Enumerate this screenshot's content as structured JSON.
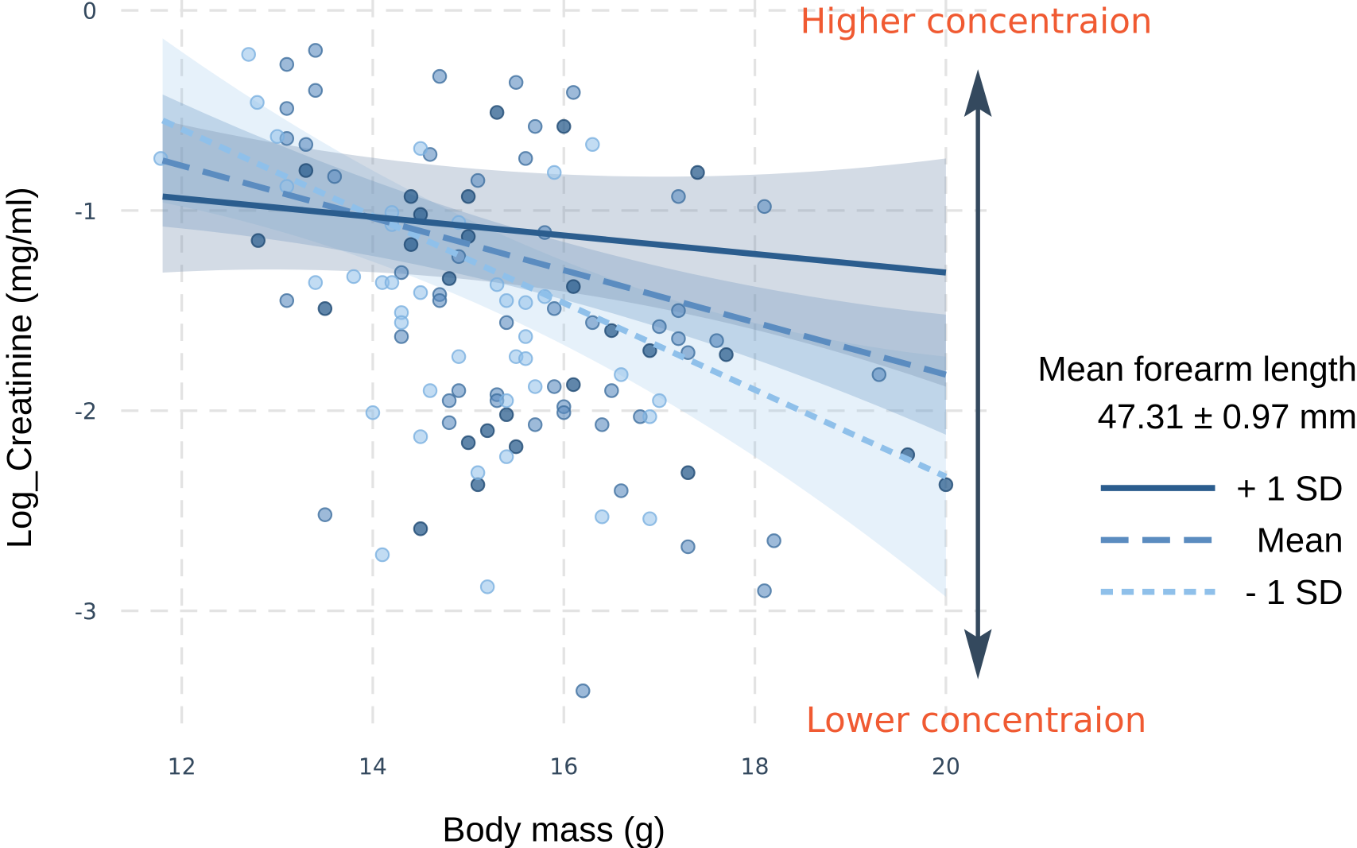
{
  "chart_data": {
    "type": "scatter",
    "xlabel": "Body mass (g)",
    "ylabel": "Log_Creatinine (mg/ml)",
    "xlim": [
      11.8,
      20.4
    ],
    "ylim": [
      -3.55,
      0.05
    ],
    "x_ticks": [
      "12",
      "14",
      "16",
      "18",
      "20"
    ],
    "x_tick_values": [
      12,
      14,
      16,
      18,
      20
    ],
    "y_ticks": [
      "0",
      "-1",
      "-2",
      "-3"
    ],
    "y_tick_values": [
      0,
      -1,
      -2,
      -3
    ],
    "grid": true,
    "legend_position": "right",
    "annotations": {
      "top": "Higher concentraion",
      "bottom": "Lower concentraion",
      "moderator_title": "Mean forearm length",
      "moderator_value": "47.31 ± 0.97 mm"
    },
    "colors": {
      "plus_sd": "#2b5d8e",
      "mean": "#5b8cc0",
      "minus_sd": "#8fc0ea",
      "arrow": "#34495e",
      "annotation": "#f05a32"
    },
    "series": [
      {
        "name": "+ 1 SD",
        "style": "solid",
        "color": "#2b5d8e",
        "line": [
          [
            11.8,
            -0.93
          ],
          [
            20,
            -1.31
          ]
        ],
        "ribbon": [
          [
            11.8,
            -1.31,
            -0.55
          ],
          [
            15.3,
            -1.36,
            -0.8
          ],
          [
            20,
            -1.88,
            -0.74
          ]
        ]
      },
      {
        "name": "Mean",
        "style": "dashed",
        "color": "#5b8cc0",
        "line": [
          [
            11.8,
            -0.75
          ],
          [
            20,
            -1.82
          ]
        ],
        "ribbon": [
          [
            11.8,
            -1.08,
            -0.42
          ],
          [
            15.3,
            -1.36,
            -1.06
          ],
          [
            20,
            -2.12,
            -1.52
          ]
        ]
      },
      {
        "name": "- 1 SD",
        "style": "dotted",
        "color": "#8fc0ea",
        "line": [
          [
            11.8,
            -0.55
          ],
          [
            20,
            -2.33
          ]
        ],
        "ribbon": [
          [
            11.8,
            -0.96,
            -0.14
          ],
          [
            15.3,
            -1.51,
            -1.11
          ],
          [
            20,
            -2.93,
            -1.73
          ]
        ]
      }
    ],
    "points": {
      "dark": [
        [
          13.3,
          -0.8
        ],
        [
          12.8,
          -1.15
        ],
        [
          13.5,
          -1.49
        ],
        [
          14.4,
          -0.93
        ],
        [
          14.5,
          -1.02
        ],
        [
          14.4,
          -1.17
        ],
        [
          14.8,
          -1.34
        ],
        [
          15.0,
          -0.93
        ],
        [
          15.0,
          -1.13
        ],
        [
          15.3,
          -0.51
        ],
        [
          16.0,
          -0.58
        ],
        [
          16.1,
          -1.38
        ],
        [
          15.4,
          -2.02
        ],
        [
          16.1,
          -1.87
        ],
        [
          15.0,
          -2.16
        ],
        [
          15.2,
          -2.1
        ],
        [
          15.5,
          -2.18
        ],
        [
          15.1,
          -2.37
        ],
        [
          16.5,
          -1.6
        ],
        [
          16.9,
          -1.7
        ],
        [
          17.7,
          -1.72
        ],
        [
          17.4,
          -0.81
        ],
        [
          19.6,
          -2.22
        ],
        [
          20.0,
          -2.37
        ],
        [
          14.5,
          -2.59
        ],
        [
          17.3,
          -2.31
        ]
      ],
      "mid": [
        [
          13.1,
          -0.27
        ],
        [
          13.4,
          -0.2
        ],
        [
          13.4,
          -0.4
        ],
        [
          13.1,
          -0.49
        ],
        [
          13.1,
          -0.64
        ],
        [
          13.3,
          -0.67
        ],
        [
          13.6,
          -0.83
        ],
        [
          13.1,
          -1.45
        ],
        [
          14.3,
          -1.31
        ],
        [
          14.6,
          -0.72
        ],
        [
          14.7,
          -0.33
        ],
        [
          14.7,
          -1.42
        ],
        [
          14.7,
          -1.45
        ],
        [
          14.3,
          -1.63
        ],
        [
          15.1,
          -0.85
        ],
        [
          14.9,
          -1.23
        ],
        [
          15.5,
          -0.36
        ],
        [
          15.7,
          -0.58
        ],
        [
          16.1,
          -0.41
        ],
        [
          15.6,
          -0.74
        ],
        [
          15.8,
          -1.11
        ],
        [
          15.9,
          -1.49
        ],
        [
          15.4,
          -1.56
        ],
        [
          14.8,
          -1.95
        ],
        [
          14.9,
          -1.9
        ],
        [
          14.8,
          -2.06
        ],
        [
          15.3,
          -1.92
        ],
        [
          15.3,
          -1.95
        ],
        [
          15.9,
          -1.88
        ],
        [
          16.0,
          -1.98
        ],
        [
          16.0,
          -2.01
        ],
        [
          15.7,
          -2.07
        ],
        [
          16.3,
          -1.56
        ],
        [
          16.5,
          -1.9
        ],
        [
          16.4,
          -2.07
        ],
        [
          16.8,
          -2.03
        ],
        [
          17.0,
          -1.58
        ],
        [
          17.2,
          -1.5
        ],
        [
          17.2,
          -1.64
        ],
        [
          17.3,
          -1.71
        ],
        [
          17.6,
          -1.65
        ],
        [
          17.2,
          -0.93
        ],
        [
          18.1,
          -0.98
        ],
        [
          19.3,
          -1.82
        ],
        [
          13.5,
          -2.52
        ],
        [
          16.6,
          -2.4
        ],
        [
          17.3,
          -2.68
        ],
        [
          18.2,
          -2.65
        ],
        [
          18.1,
          -2.9
        ],
        [
          16.2,
          -3.4
        ]
      ],
      "light": [
        [
          12.7,
          -0.22
        ],
        [
          12.79,
          -0.46
        ],
        [
          13.0,
          -0.63
        ],
        [
          13.1,
          -0.88
        ],
        [
          11.78,
          -0.74
        ],
        [
          13.4,
          -1.36
        ],
        [
          13.8,
          -1.33
        ],
        [
          14.1,
          -1.36
        ],
        [
          14.2,
          -1.36
        ],
        [
          14.2,
          -1.01
        ],
        [
          14.2,
          -1.07
        ],
        [
          14.5,
          -0.69
        ],
        [
          14.5,
          -1.41
        ],
        [
          14.3,
          -1.51
        ],
        [
          14.3,
          -1.56
        ],
        [
          14.9,
          -1.06
        ],
        [
          15.9,
          -0.81
        ],
        [
          16.3,
          -0.67
        ],
        [
          15.3,
          -1.37
        ],
        [
          15.4,
          -1.45
        ],
        [
          15.6,
          -1.46
        ],
        [
          15.8,
          -1.43
        ],
        [
          15.6,
          -1.63
        ],
        [
          14.9,
          -1.73
        ],
        [
          15.5,
          -1.73
        ],
        [
          15.6,
          -1.74
        ],
        [
          14.6,
          -1.9
        ],
        [
          15.4,
          -1.95
        ],
        [
          15.7,
          -1.88
        ],
        [
          15.4,
          -2.23
        ],
        [
          14.5,
          -2.13
        ],
        [
          14.0,
          -2.01
        ],
        [
          15.1,
          -2.31
        ],
        [
          16.6,
          -1.82
        ],
        [
          16.9,
          -2.03
        ],
        [
          17.0,
          -1.95
        ],
        [
          14.1,
          -2.72
        ],
        [
          15.2,
          -2.88
        ],
        [
          16.4,
          -2.53
        ],
        [
          16.9,
          -2.54
        ]
      ]
    }
  }
}
